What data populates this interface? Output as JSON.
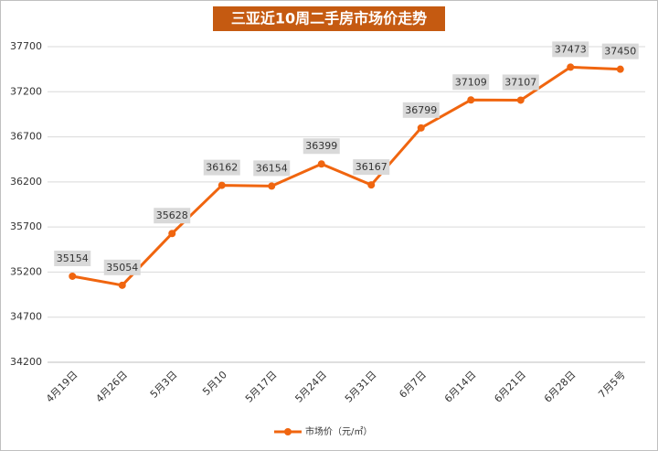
{
  "chart_data": {
    "type": "line",
    "title": "三亚近10周二手房市场价走势",
    "categories": [
      "4月19日",
      "4月26日",
      "5月3日",
      "5月10",
      "5月17日",
      "5月24日",
      "5月31日",
      "6月7日",
      "6月14日",
      "6月21日",
      "6月28日",
      "7月5号"
    ],
    "series": [
      {
        "name": "市场价（元/㎡）",
        "color": "#f0650f",
        "values": [
          35154,
          35054,
          35628,
          36162,
          36154,
          36399,
          36167,
          36799,
          37109,
          37107,
          37473,
          37450
        ]
      }
    ],
    "ylim": [
      34200,
      37700
    ],
    "yticks": [
      34200,
      34700,
      35200,
      35700,
      36200,
      36700,
      37200,
      37700
    ],
    "grid": true
  }
}
